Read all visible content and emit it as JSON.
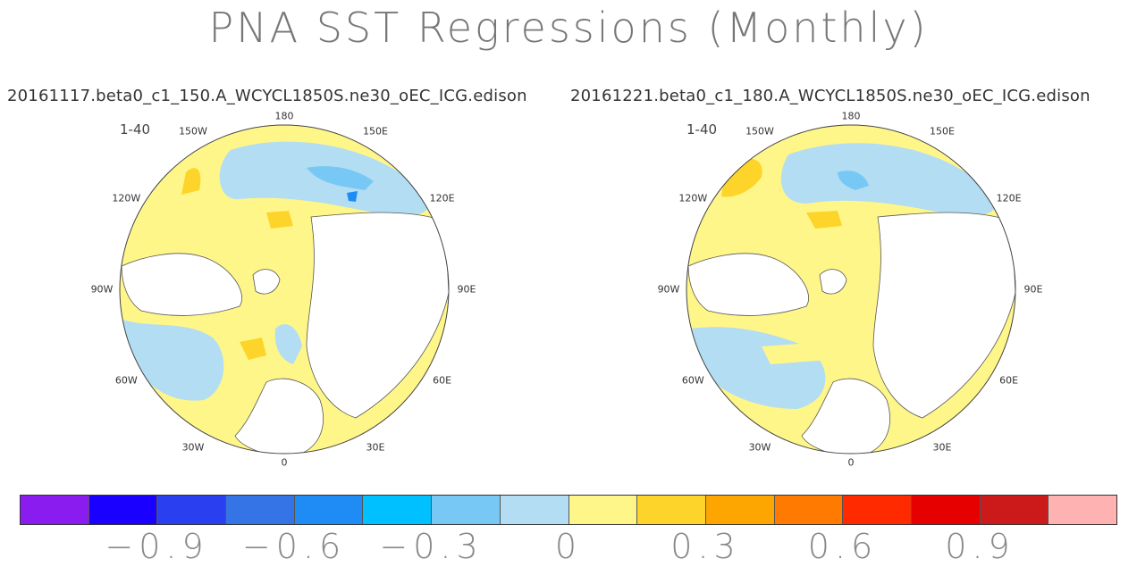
{
  "title": "PNA SST Regressions (Monthly)",
  "panels": [
    {
      "case": "20161117.beta0_c1_150.A_WCYCL1850S.ne30_oEC_ICG.edison",
      "season": "1-40",
      "lon_labels": [
        "180",
        "150W",
        "150E",
        "120W",
        "120E",
        "90W",
        "90E",
        "60W",
        "60E",
        "30W",
        "30E",
        "0"
      ]
    },
    {
      "case": "20161221.beta0_c1_180.A_WCYCL1850S.ne30_oEC_ICG.edison",
      "season": "1-40",
      "lon_labels": [
        "180",
        "150W",
        "150E",
        "120W",
        "120E",
        "90W",
        "90E",
        "60W",
        "60E",
        "30W",
        "30E",
        "0"
      ]
    }
  ],
  "colorbar": {
    "colors": [
      "#8a1cf0",
      "#1a00ff",
      "#2a3ff0",
      "#3574e6",
      "#1f8cf6",
      "#00c0ff",
      "#78c8f5",
      "#b2ddf2",
      "#fff68a",
      "#fdd429",
      "#fda500",
      "#ff7a00",
      "#ff2a00",
      "#e60000",
      "#cc1a1a",
      "#ffb2b2"
    ],
    "tick_labels": [
      "−0.9",
      "−0.6",
      "−0.3",
      "0",
      "0.3",
      "0.6",
      "0.9"
    ]
  },
  "colors": {
    "positive": "#fff68a",
    "negative": "#b2ddf2",
    "strong_positive": "#fdd429",
    "strong_negative": "#78c8f5",
    "land": "#ffffff"
  }
}
